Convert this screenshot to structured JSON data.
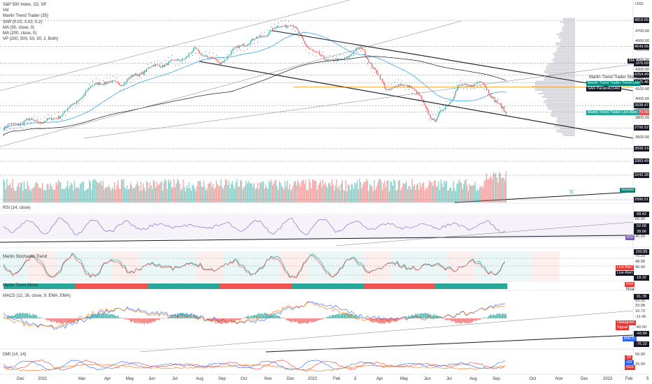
{
  "header": {
    "symbol": "S&P 500 Index, 1D, SP",
    "indicators": [
      "Vol",
      "Martin Trend Trader (35)",
      "SAR (0.02, 0.02, 0.2)",
      "MA (50, close, 0)",
      "MA (200, close, 0)",
      "VP (200, 500, 50, 30, 2, Both)"
    ]
  },
  "currency": "USD",
  "price_axis_labels": [
    "4800.00",
    "4700.00",
    "4600.00",
    "4500.00",
    "4400.00",
    "4300.00",
    "4200.00",
    "4100.00",
    "4000.00",
    "3900.00",
    "3800.00",
    "3700.00",
    "3600.00"
  ],
  "price_level_tags": [
    {
      "label": "4819.65",
      "price": 4819.65,
      "color": "#131722"
    },
    {
      "label": "4549.66",
      "price": 4549.66,
      "color": "#131722"
    },
    {
      "label": "4376.59",
      "price": 4376.59,
      "color": "#131722"
    },
    {
      "label": "4254.49",
      "price": 4254.49,
      "color": "#131722"
    },
    {
      "label": "4175.46",
      "price": 4175.46,
      "color": "#131722"
    },
    {
      "label": "3938.47",
      "price": 3938.47,
      "color": "#131722"
    },
    {
      "label": "3870.00",
      "price": 3870.0,
      "color": "#e05050"
    },
    {
      "label": "3706.52",
      "price": 3706.52,
      "color": "#131722"
    },
    {
      "label": "3508.14",
      "price": 3508.14,
      "color": "#131722"
    },
    {
      "label": "3383.49",
      "price": 3383.49,
      "color": "#131722"
    },
    {
      "label": "3242.38",
      "price": 3242.38,
      "color": "#131722"
    },
    {
      "label": "2996.51",
      "price": 2996.51,
      "color": "#131722"
    }
  ],
  "indicator_labels": {
    "ma_tag": "MA",
    "stop_loss": "Martin Trend Trader Stop Loss",
    "trend_line": "Martin Trend Trader Trend Line",
    "sar": "SAR ParabolicSAR",
    "live_alert": "Martin Trend Trader Live Alert",
    "volume": "Volume"
  },
  "bottom_axis": [
    "Dec",
    "2021",
    "Mar",
    "Apr",
    "May",
    "Jun",
    "Jul",
    "Aug",
    "Sep",
    "Oct",
    "Nov",
    "Dec",
    "2022",
    "Feb",
    "3",
    "Apr",
    "May",
    "Jun",
    "Jul",
    "Aug",
    "Sep",
    "Oct",
    "Nov",
    "Dec",
    "2023",
    "Feb",
    "5"
  ],
  "rsi": {
    "title": "RSI (14, close)",
    "levels": [
      "68.42",
      "60.00",
      "52.68",
      "38.06",
      "40.00"
    ],
    "tag": "RSI"
  },
  "stoch": {
    "title": "Martin Stochastic Trend",
    "levels": [
      "100.85",
      "76.29",
      "48.08",
      "40.00",
      "18.32"
    ],
    "tags": [
      {
        "label": "Live Alert",
        "color": "#e53935"
      },
      {
        "label": "Live Alert",
        "color": "#131722"
      }
    ]
  },
  "meter": {
    "title": "Martin Trend Meter",
    "tags": [
      "Red",
      "Rise"
    ]
  },
  "macd": {
    "title": "MACD (12, 26, close, 9, EMA, EMA)",
    "levels": [
      "91.78",
      "55.35",
      "33.08",
      "10.73",
      "-11.45",
      "-40.00",
      "-43.84",
      "-76.22"
    ],
    "tags": [
      {
        "label": "Histogram",
        "color": "#e53935"
      },
      {
        "label": "Signal",
        "color": "#e53935"
      },
      {
        "label": "MACD",
        "color": "#2962ff"
      }
    ]
  },
  "dmi": {
    "title": "DMI (14, 14)",
    "levels": [
      "50.00",
      "25.00"
    ],
    "tags": [
      {
        "label": "-DI",
        "color": "#e53935"
      },
      {
        "label": "+DI",
        "color": "#2962ff"
      },
      {
        "label": "ADX",
        "color": "#e53935"
      }
    ]
  },
  "colors": {
    "up": "#26a69a",
    "down": "#ef5350",
    "ma50": "#2196f3",
    "ma200": "#131722",
    "sar": "#131722",
    "vp": "#b2b5be"
  },
  "chart_data": {
    "type": "line",
    "title": "S&P 500 Index, 1D, SP",
    "x": [
      "Dec 2020",
      "Jan 2021",
      "Feb 2021",
      "Mar 2021",
      "Apr 2021",
      "May 2021",
      "Jun 2021",
      "Jul 2021",
      "Aug 2021",
      "Sep 2021",
      "Oct 2021",
      "Nov 2021",
      "Dec 2021",
      "Jan 2022",
      "Feb 2022",
      "Mar 2022",
      "Apr 2022",
      "May 2022",
      "Jun 2022",
      "Jul 2022",
      "Aug 2022",
      "Sep 2022"
    ],
    "series": [
      {
        "name": "Close",
        "values": [
          3700,
          3760,
          3810,
          3950,
          4180,
          4200,
          4290,
          4390,
          4520,
          4350,
          4600,
          4680,
          4770,
          4500,
          4370,
          4530,
          4130,
          4130,
          3790,
          4130,
          4150,
          3870
        ]
      }
    ],
    "ylim": [
      3550,
      4900
    ]
  }
}
